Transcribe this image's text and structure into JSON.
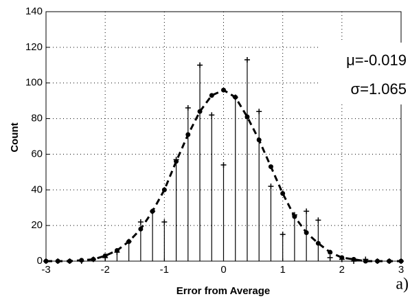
{
  "chart_data": {
    "type": "stem",
    "x_label": "Error from Average",
    "y_label": "Count",
    "x": [
      -3,
      -2.8,
      -2.6,
      -2.4,
      -2.2,
      -2,
      -1.8,
      -1.6,
      -1.4,
      -1.2,
      -1,
      -0.8,
      -0.6,
      -0.4,
      -0.2,
      0,
      0.2,
      0.4,
      0.6,
      0.8,
      1,
      1.2,
      1.4,
      1.6,
      1.8,
      2,
      2.2,
      2.4,
      2.6,
      2.8,
      3
    ],
    "series": [
      {
        "kind": "stem",
        "color": "#000000",
        "values": [
          0,
          0,
          0,
          0,
          1,
          2,
          5,
          11,
          22,
          28,
          22,
          57,
          86,
          110,
          82,
          54,
          92,
          113,
          84,
          42,
          15,
          26,
          28,
          23,
          2,
          1,
          0,
          1,
          0,
          0,
          0
        ]
      },
      {
        "kind": "line",
        "color": "#000000",
        "dashed": true,
        "values": [
          0,
          0,
          0,
          0.5,
          1,
          3,
          6,
          11,
          18,
          28,
          40,
          56,
          71,
          84,
          93,
          96,
          92,
          81,
          68,
          53,
          38,
          25,
          16,
          10,
          5,
          2,
          1,
          0,
          0,
          0,
          0
        ]
      }
    ],
    "xlim": [
      -3,
      3
    ],
    "xticks": [
      -3,
      -2,
      -1,
      0,
      1,
      2,
      3
    ],
    "ylim": [
      0,
      140
    ],
    "yticks": [
      0,
      20,
      40,
      60,
      80,
      100,
      120,
      140
    ],
    "grid": true,
    "annotations": [
      "μ=-0.019",
      "σ=1.065",
      "a)"
    ]
  }
}
